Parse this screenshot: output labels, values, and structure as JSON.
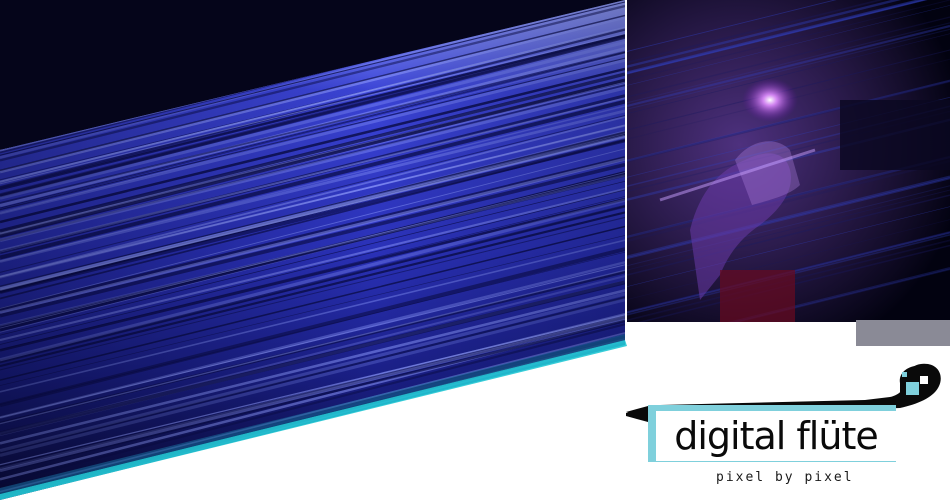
{
  "logo": {
    "title": "digital flüte",
    "tagline": "pixel by pixel"
  },
  "colors": {
    "streak_blue": "#2f37c8",
    "dark_navy": "#05051a",
    "glow_cyan": "#21c8d4",
    "logo_band": "#7fd0dc",
    "photo_purple": "#a040d0"
  },
  "icons": {
    "flute_icon": "flute-icon",
    "pixel_squares": "pixel-squares-icon"
  }
}
